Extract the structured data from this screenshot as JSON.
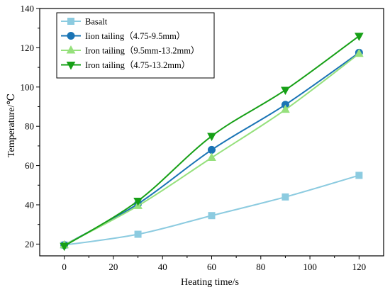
{
  "chart_data": {
    "type": "line",
    "title": "",
    "xlabel": "Heating time/s",
    "ylabel": "Temperature/℃",
    "xlim": [
      -10,
      130
    ],
    "ylim": [
      14,
      140
    ],
    "xticks": [
      0,
      20,
      40,
      60,
      80,
      100,
      120
    ],
    "yticks": [
      20,
      40,
      60,
      80,
      100,
      120,
      140
    ],
    "grid": false,
    "legend_position": "top-left",
    "x": [
      0,
      30,
      60,
      90,
      120
    ],
    "series": [
      {
        "name": "Basalt",
        "values": [
          19.5,
          25,
          34.5,
          44,
          55
        ],
        "color": "#8ccbe0",
        "marker": "square"
      },
      {
        "name": "Iion tailing（4.75-9.5mm）",
        "values": [
          19.5,
          40.5,
          68,
          91,
          117.5
        ],
        "color": "#1a74b5",
        "marker": "circle"
      },
      {
        "name": "Iron tailing（9.5mm-13.2mm）",
        "values": [
          19.5,
          39.5,
          64,
          88.5,
          117
        ],
        "color": "#96e07c",
        "marker": "triangle-up"
      },
      {
        "name": "Iron tailing（4.75-13.2mm）",
        "values": [
          19,
          42,
          75,
          98.5,
          126
        ],
        "color": "#17a017",
        "marker": "triangle-down"
      }
    ]
  }
}
